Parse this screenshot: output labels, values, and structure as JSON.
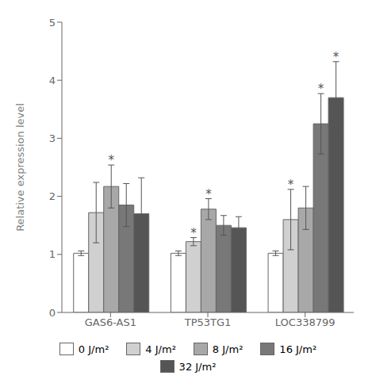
{
  "chart_data": {
    "type": "bar",
    "ylabel": "Relative expression level",
    "categories": [
      "GAS6-AS1",
      "TP53TG1",
      "LOC338799"
    ],
    "series": [
      {
        "name": "0 J/m²",
        "color": "#ffffff",
        "values": [
          1.02,
          1.02,
          1.02
        ],
        "errors": [
          0.04,
          0.04,
          0.04
        ]
      },
      {
        "name": "4 J/m²",
        "color": "#d0d0d0",
        "values": [
          1.72,
          1.22,
          1.6
        ],
        "errors": [
          0.52,
          0.07,
          0.52
        ]
      },
      {
        "name": "8 J/m²",
        "color": "#a8a8a8",
        "values": [
          2.17,
          1.78,
          1.8
        ],
        "errors": [
          0.37,
          0.18,
          0.37
        ]
      },
      {
        "name": "16 J/m²",
        "color": "#787878",
        "values": [
          1.85,
          1.5,
          3.25
        ],
        "errors": [
          0.37,
          0.17,
          0.52
        ]
      },
      {
        "name": "32 J/m²",
        "color": "#555555",
        "values": [
          1.7,
          1.46,
          3.7
        ],
        "errors": [
          0.62,
          0.19,
          0.62
        ]
      }
    ],
    "annotations": [
      {
        "category": "GAS6-AS1",
        "series": "8 J/m²",
        "text": "*"
      },
      {
        "category": "TP53TG1",
        "series": "4 J/m²",
        "text": "*"
      },
      {
        "category": "TP53TG1",
        "series": "8 J/m²",
        "text": "*"
      },
      {
        "category": "LOC338799",
        "series": "4 J/m²",
        "text": "*"
      },
      {
        "category": "LOC338799",
        "series": "16 J/m²",
        "text": "*"
      },
      {
        "category": "LOC338799",
        "series": "32 J/m²",
        "text": "*"
      }
    ],
    "ylim": [
      0,
      5
    ],
    "yticks": [
      0,
      1,
      2,
      3,
      4,
      5
    ],
    "grid": false
  }
}
